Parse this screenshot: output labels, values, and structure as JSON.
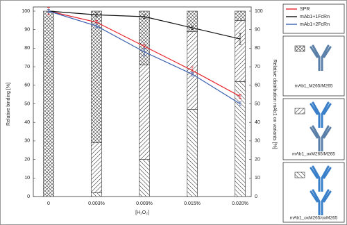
{
  "chart_data": {
    "type": "bar-line",
    "x_label": "[H₂O₂]",
    "y_label": "Relative binding [%]",
    "y2_label": "Relative distribution mAb1 ox variants [%]",
    "categories": [
      "0",
      "0.003%",
      "0.009%",
      "0.015%",
      "0.020%"
    ],
    "ylim": [
      0,
      100
    ],
    "yticks": [
      0,
      10,
      20,
      30,
      40,
      50,
      60,
      70,
      80,
      90,
      100
    ],
    "y2lim": [
      0,
      100
    ],
    "y2ticks": [
      0,
      10,
      20,
      30,
      40,
      50,
      60,
      70,
      80,
      90,
      100
    ],
    "bars": [
      {
        "name": "mAb1_oxM265/oxM265",
        "pattern": "backslash",
        "axis": "y2",
        "values": [
          0,
          2,
          20,
          47,
          62
        ]
      },
      {
        "name": "mAb1_oxM265/M265",
        "pattern": "slash",
        "axis": "y2",
        "values": [
          0,
          27,
          51,
          42,
          33
        ]
      },
      {
        "name": "mAb1_M265/M265",
        "pattern": "crosshatch",
        "axis": "y2",
        "values": [
          100,
          71,
          29,
          11,
          5
        ]
      }
    ],
    "series": [
      {
        "name": "SPR",
        "color": "#e8202a",
        "values": [
          100,
          94,
          81,
          68,
          54
        ],
        "errors": [
          2,
          1,
          1,
          2,
          1
        ]
      },
      {
        "name": "mAb1+1FcRn",
        "color": "#111111",
        "values": [
          100,
          98,
          97,
          91,
          85
        ],
        "errors": [
          1,
          1,
          1,
          1,
          3
        ]
      },
      {
        "name": "mAb1+2FcRn",
        "color": "#3a5fb0",
        "values": [
          100,
          92,
          78,
          66,
          50
        ],
        "errors": [
          1,
          1,
          2,
          1,
          1
        ]
      }
    ]
  }
}
